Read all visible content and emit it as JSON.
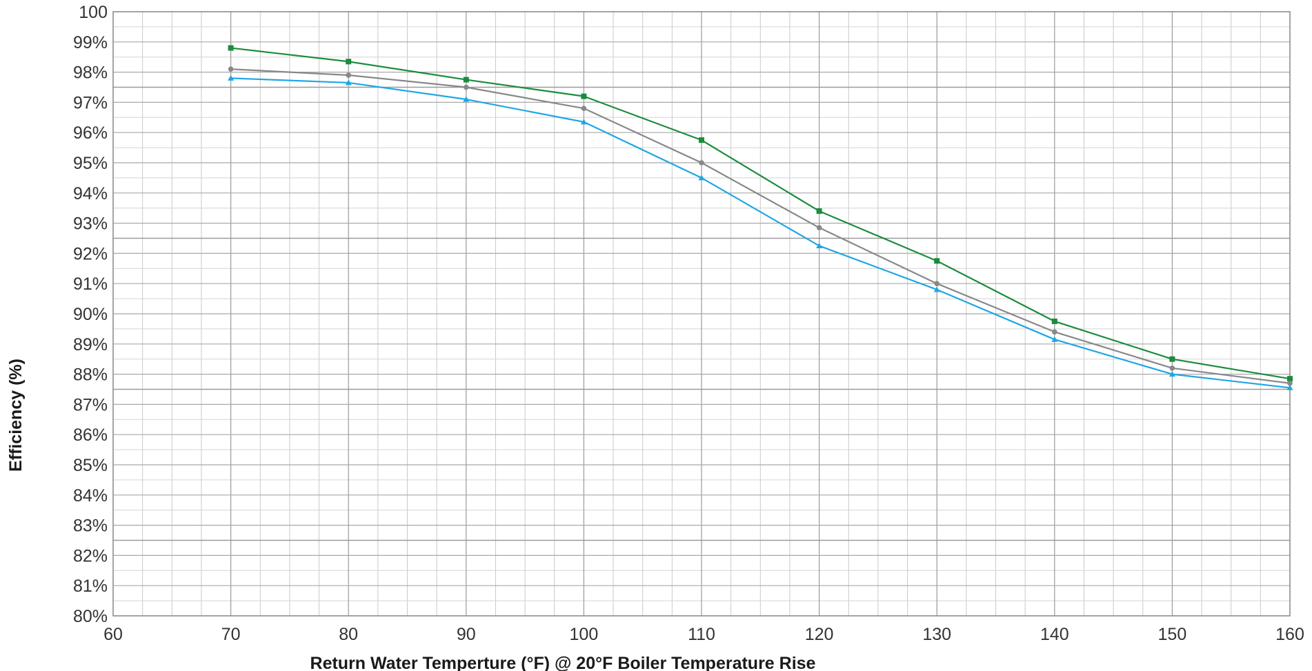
{
  "chart_data": {
    "type": "line",
    "title": "",
    "xlabel": "Return Water Temperture (°F) @ 20°F Boiler Temperature Rise",
    "ylabel": "Efficiency (%)",
    "xlim": [
      60,
      160
    ],
    "ylim": [
      80,
      100
    ],
    "x_ticks": [
      60,
      70,
      80,
      90,
      100,
      110,
      120,
      130,
      140,
      150,
      160
    ],
    "x_tick_labels": [
      "60",
      "70",
      "80",
      "90",
      "100",
      "110",
      "120",
      "130",
      "140",
      "150",
      "160"
    ],
    "y_ticks": [
      80,
      81,
      82,
      83,
      84,
      85,
      86,
      87,
      88,
      89,
      90,
      91,
      92,
      93,
      94,
      95,
      96,
      97,
      98,
      99,
      100
    ],
    "y_tick_labels": [
      "80%",
      "81%",
      "82%",
      "83%",
      "84%",
      "85%",
      "86%",
      "87%",
      "88%",
      "89%",
      "90%",
      "91%",
      "92%",
      "93%",
      "94%",
      "95%",
      "96%",
      "97%",
      "98%",
      "99%",
      "100"
    ],
    "grid": true,
    "x": [
      70,
      80,
      90,
      100,
      110,
      120,
      130,
      140,
      150,
      160
    ],
    "series": [
      {
        "color": "#1a8c3c",
        "marker": "square",
        "values": [
          98.8,
          98.35,
          97.75,
          97.2,
          95.75,
          93.4,
          91.75,
          89.75,
          88.5,
          87.85
        ]
      },
      {
        "color": "#888888",
        "marker": "circle",
        "values": [
          98.1,
          97.9,
          97.5,
          96.8,
          95.0,
          92.85,
          91.0,
          89.4,
          88.2,
          87.7
        ]
      },
      {
        "color": "#1ea6e6",
        "marker": "triangle",
        "values": [
          97.8,
          97.65,
          97.1,
          96.35,
          94.5,
          92.25,
          90.8,
          89.15,
          88.0,
          87.55
        ]
      }
    ]
  }
}
